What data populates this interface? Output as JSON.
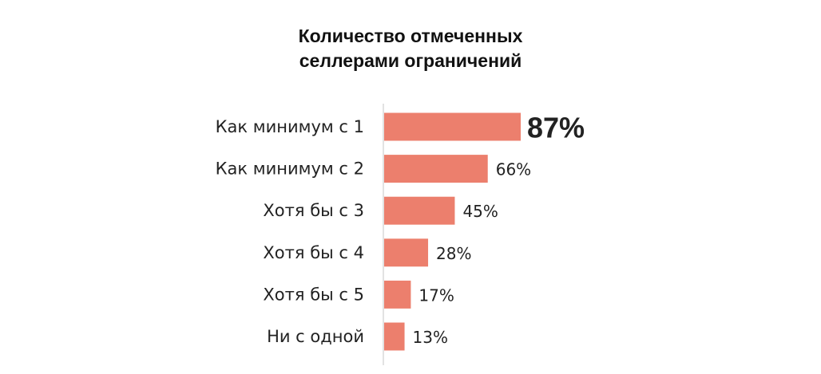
{
  "chart_data": {
    "type": "bar",
    "orientation": "horizontal",
    "title": [
      "Количество отмеченных",
      "селлерами ограничений"
    ],
    "categories": [
      "Как минимум с 1",
      "Как минимум с 2",
      "Хотя бы с 3",
      "Хотя бы с 4",
      "Хотя бы с 5",
      "Ни с одной"
    ],
    "values": [
      87,
      66,
      45,
      28,
      17,
      13
    ],
    "value_labels": [
      "87%",
      "66%",
      "45%",
      "28%",
      "17%",
      "13%"
    ],
    "unit": "%",
    "xlim": [
      0,
      100
    ],
    "grid": false,
    "legend": "none",
    "highlight_index": 0
  },
  "colors": {
    "bar": "#ec7f6d",
    "axis": "#d9d9d9",
    "highlight_text": "#c43a26",
    "text": "#222222"
  }
}
